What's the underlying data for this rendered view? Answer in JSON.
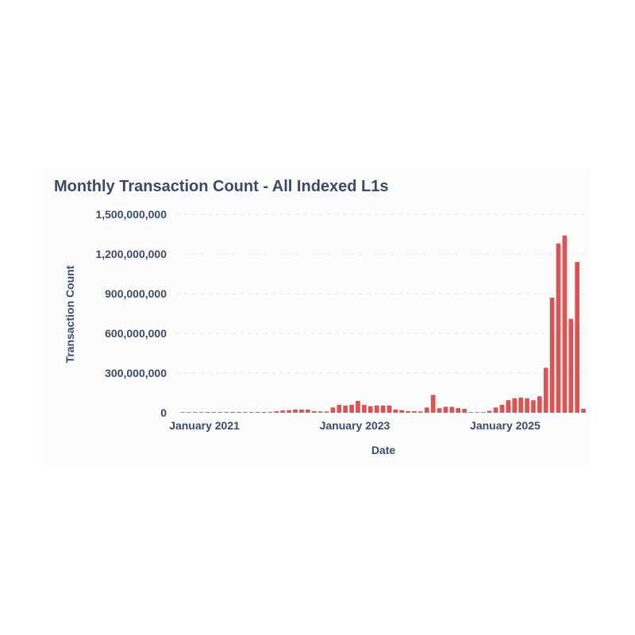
{
  "chart_data": {
    "type": "bar",
    "title": "Monthly Transaction Count - All Indexed L1s",
    "xlabel": "Date",
    "ylabel": "Transaction Count",
    "ylim": [
      0,
      1500000000
    ],
    "y_ticks": [
      0,
      300000000,
      600000000,
      900000000,
      1200000000,
      1500000000
    ],
    "y_tick_labels": [
      "0",
      "300,000,000",
      "600,000,000",
      "900,000,000",
      "1,200,000,000",
      "1,500,000,000"
    ],
    "x_ticks": [
      {
        "label": "January 2021",
        "index": 4
      },
      {
        "label": "January 2023",
        "index": 28
      },
      {
        "label": "January 2025",
        "index": 52
      }
    ],
    "grid": "horizontal dashed",
    "bar_color": "#e05252",
    "categories": [
      "2020-09",
      "2020-10",
      "2020-11",
      "2020-12",
      "2021-01",
      "2021-02",
      "2021-03",
      "2021-04",
      "2021-05",
      "2021-06",
      "2021-07",
      "2021-08",
      "2021-09",
      "2021-10",
      "2021-11",
      "2021-12",
      "2022-01",
      "2022-02",
      "2022-03",
      "2022-04",
      "2022-05",
      "2022-06",
      "2022-07",
      "2022-08",
      "2022-09",
      "2022-10",
      "2022-11",
      "2022-12",
      "2023-01",
      "2023-02",
      "2023-03",
      "2023-04",
      "2023-05",
      "2023-06",
      "2023-07",
      "2023-08",
      "2023-09",
      "2023-10",
      "2023-11",
      "2023-12",
      "2024-01",
      "2024-02",
      "2024-03",
      "2024-04",
      "2024-05",
      "2024-06",
      "2024-07",
      "2024-08",
      "2024-09",
      "2024-10",
      "2024-11",
      "2024-12",
      "2025-01",
      "2025-02",
      "2025-03",
      "2025-04",
      "2025-05",
      "2025-06",
      "2025-07",
      "2025-08",
      "2025-09",
      "2025-10",
      "2025-11",
      "2025-12",
      "2026-01"
    ],
    "values": [
      5000000,
      5000000,
      5000000,
      5000000,
      6000000,
      6000000,
      6000000,
      6000000,
      6000000,
      6000000,
      6000000,
      6000000,
      6000000,
      6000000,
      6000000,
      12000000,
      17000000,
      20000000,
      25000000,
      25000000,
      25000000,
      12000000,
      10000000,
      10000000,
      40000000,
      60000000,
      55000000,
      60000000,
      90000000,
      60000000,
      50000000,
      55000000,
      55000000,
      55000000,
      25000000,
      20000000,
      12000000,
      12000000,
      10000000,
      40000000,
      135000000,
      35000000,
      45000000,
      45000000,
      35000000,
      30000000,
      5000000,
      5000000,
      5000000,
      15000000,
      40000000,
      60000000,
      95000000,
      110000000,
      115000000,
      110000000,
      95000000,
      125000000,
      340000000,
      870000000,
      1280000000,
      1340000000,
      710000000,
      1140000000,
      30000000
    ]
  }
}
